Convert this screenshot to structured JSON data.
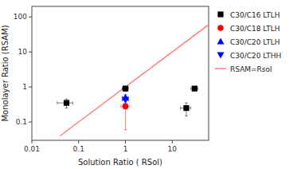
{
  "chart_data": {
    "type": "scatter",
    "x_label": "Solution Ratio ( RSol)",
    "y_label": "Monolayer Ratio (RSAM)",
    "log": true,
    "grid": false,
    "legend": "right",
    "xlim": [
      0.01,
      60
    ],
    "ylim": [
      0.03,
      200
    ],
    "xticks": [
      0.01,
      0.1,
      1,
      10
    ],
    "yticks": [
      0.1,
      1,
      10,
      100
    ],
    "series": [
      {
        "name": "C30/C16 LTLH",
        "type": "scatter",
        "color": "black",
        "marker": "square",
        "x": [
          0.055,
          1.0,
          20.0,
          30.0
        ],
        "values": [
          0.35,
          0.9,
          0.25,
          0.9
        ],
        "x_err": [
          0.02,
          0.15,
          5.0,
          5.0
        ],
        "y_err": [
          0.1,
          0.15,
          0.1,
          0.1
        ]
      },
      {
        "name": "C30/C18 LTLH",
        "type": "scatter",
        "color": "red",
        "marker": "circle",
        "x": [
          1.0
        ],
        "values": [
          0.28
        ],
        "x_err": [
          0.2
        ],
        "y_err_minus": [
          0.22
        ],
        "y_err_plus": [
          0.05
        ]
      },
      {
        "name": "C30/C20 LTLH",
        "type": "scatter",
        "color": "blue",
        "marker": "triangle-up",
        "x": [
          1.0
        ],
        "values": [
          0.5
        ],
        "x_err": [
          0.15
        ],
        "y_err": [
          0.1
        ]
      },
      {
        "name": "C30/C20 LTHH",
        "type": "scatter",
        "color": "blue",
        "marker": "triangle-down",
        "x": [
          1.0
        ],
        "values": [
          0.43
        ],
        "x_err": [
          0.15
        ],
        "y_err": [
          0.08
        ]
      },
      {
        "name": "RSAM=Rsol",
        "type": "line",
        "color": "#ff8080",
        "line_style": "solid",
        "x": [
          0.04,
          60
        ],
        "values": [
          0.04,
          60
        ]
      }
    ]
  }
}
